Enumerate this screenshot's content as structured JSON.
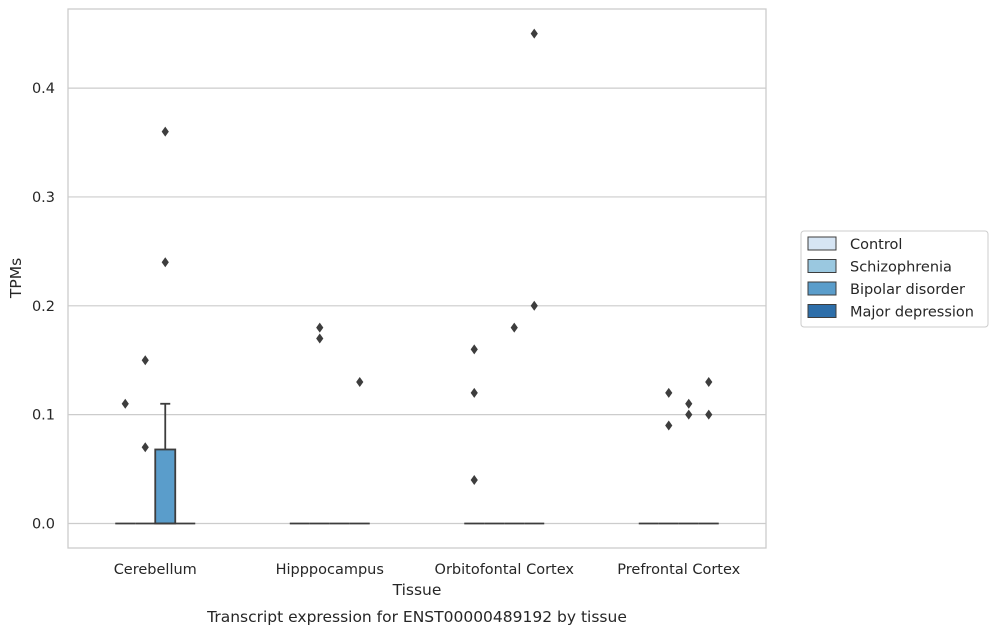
{
  "chart_data": {
    "type": "box",
    "title": "",
    "caption": "Transcript expression for ENST00000489192 by tissue",
    "xlabel": "Tissue",
    "ylabel": "TPMs",
    "ylim": [
      -0.022,
      0.475
    ],
    "yticks": [
      0.0,
      0.1,
      0.2,
      0.3,
      0.4
    ],
    "ytick_labels": [
      "0.0",
      "0.1",
      "0.2",
      "0.3",
      "0.4"
    ],
    "grid": "horizontal",
    "legend_position": "right",
    "categories": [
      "Cerebellum",
      "Hipppocampus",
      "Orbitofontal Cortex",
      "Prefrontal Cortex"
    ],
    "series": [
      {
        "name": "Control",
        "color": "#d6e5f4",
        "boxes": [
          {
            "q1": 0,
            "median": 0,
            "q3": 0,
            "whisker_low": 0,
            "whisker_high": 0,
            "outliers": [
              0.11
            ]
          },
          {
            "q1": 0,
            "median": 0,
            "q3": 0,
            "whisker_low": 0,
            "whisker_high": 0,
            "outliers": []
          },
          {
            "q1": 0,
            "median": 0,
            "q3": 0,
            "whisker_low": 0,
            "whisker_high": 0,
            "outliers": [
              0.16,
              0.12,
              0.04
            ]
          },
          {
            "q1": 0,
            "median": 0,
            "q3": 0,
            "whisker_low": 0,
            "whisker_high": 0,
            "outliers": []
          }
        ]
      },
      {
        "name": "Schizophrenia",
        "color": "#9ac8e0",
        "boxes": [
          {
            "q1": 0,
            "median": 0,
            "q3": 0,
            "whisker_low": 0,
            "whisker_high": 0,
            "outliers": [
              0.15,
              0.07
            ]
          },
          {
            "q1": 0,
            "median": 0,
            "q3": 0,
            "whisker_low": 0,
            "whisker_high": 0,
            "outliers": [
              0.18,
              0.17
            ]
          },
          {
            "q1": 0,
            "median": 0,
            "q3": 0,
            "whisker_low": 0,
            "whisker_high": 0,
            "outliers": []
          },
          {
            "q1": 0,
            "median": 0,
            "q3": 0,
            "whisker_low": 0,
            "whisker_high": 0,
            "outliers": [
              0.12,
              0.09
            ]
          }
        ]
      },
      {
        "name": "Bipolar disorder",
        "color": "#5a9dcb",
        "boxes": [
          {
            "q1": 0,
            "median": 0,
            "q3": 0.068,
            "whisker_low": 0,
            "whisker_high": 0.11,
            "outliers": [
              0.36,
              0.24
            ]
          },
          {
            "q1": 0,
            "median": 0,
            "q3": 0,
            "whisker_low": 0,
            "whisker_high": 0,
            "outliers": []
          },
          {
            "q1": 0,
            "median": 0,
            "q3": 0,
            "whisker_low": 0,
            "whisker_high": 0,
            "outliers": [
              0.18
            ]
          },
          {
            "q1": 0,
            "median": 0,
            "q3": 0,
            "whisker_low": 0,
            "whisker_high": 0,
            "outliers": [
              0.11,
              0.1
            ]
          }
        ]
      },
      {
        "name": "Major depression",
        "color": "#2d6ea9",
        "boxes": [
          {
            "q1": 0,
            "median": 0,
            "q3": 0,
            "whisker_low": 0,
            "whisker_high": 0,
            "outliers": []
          },
          {
            "q1": 0,
            "median": 0,
            "q3": 0,
            "whisker_low": 0,
            "whisker_high": 0,
            "outliers": [
              0.13
            ]
          },
          {
            "q1": 0,
            "median": 0,
            "q3": 0,
            "whisker_low": 0,
            "whisker_high": 0,
            "outliers": [
              0.45,
              0.2
            ]
          },
          {
            "q1": 0,
            "median": 0,
            "q3": 0,
            "whisker_low": 0,
            "whisker_high": 0,
            "outliers": [
              0.13,
              0.1
            ]
          }
        ]
      }
    ]
  }
}
